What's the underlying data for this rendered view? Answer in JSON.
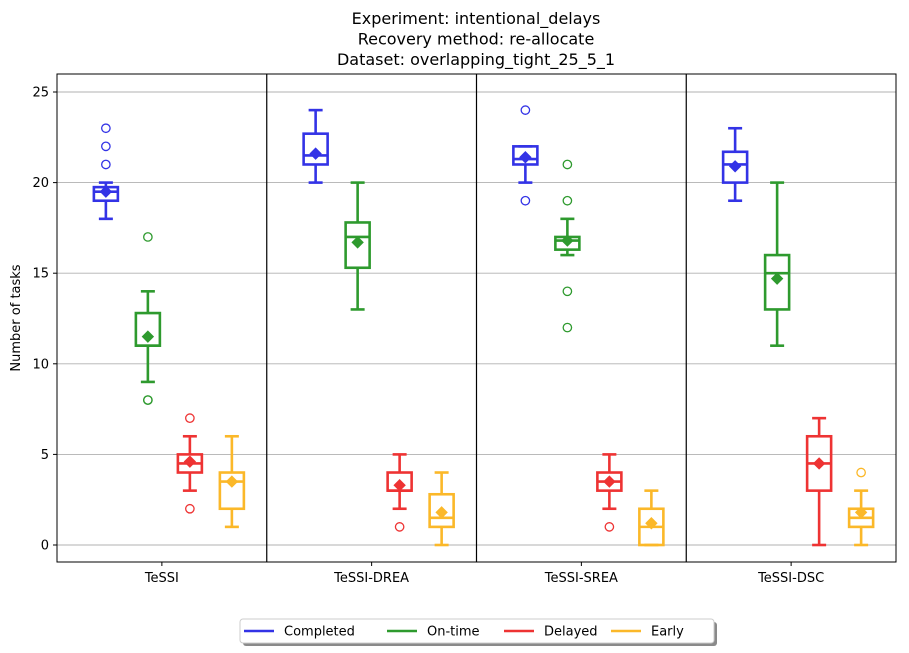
{
  "chart_data": {
    "type": "box",
    "title": [
      "Experiment: intentional_delays",
      "Recovery method: re-allocate",
      "Dataset: overlapping_tight_25_5_1"
    ],
    "xlabel": "",
    "ylabel": "Number of tasks",
    "ylim": [
      -1,
      26
    ],
    "yticks": [
      0,
      5,
      10,
      15,
      20,
      25
    ],
    "grid": "horizontal",
    "legend_placement": "bottom-center",
    "groups": [
      "TeSSI",
      "TeSSI-DREA",
      "TeSSI-SREA",
      "TeSSI-DSC"
    ],
    "series": [
      {
        "name": "Completed",
        "color": "#3333e6",
        "boxes": [
          {
            "whislo": 18,
            "q1": 19,
            "med": 19.5,
            "q3": 19.75,
            "whishi": 20,
            "mean": 19.5,
            "fliers": [
              21,
              22,
              23
            ]
          },
          {
            "whislo": 20,
            "q1": 21,
            "med": 21.5,
            "q3": 22.7,
            "whishi": 24,
            "mean": 21.6,
            "fliers": []
          },
          {
            "whislo": 20,
            "q1": 21,
            "med": 21.3,
            "q3": 22,
            "whishi": 22,
            "mean": 21.4,
            "fliers": [
              19,
              24
            ]
          },
          {
            "whislo": 19,
            "q1": 20,
            "med": 21,
            "q3": 21.7,
            "whishi": 23,
            "mean": 20.9,
            "fliers": []
          }
        ]
      },
      {
        "name": "On-time",
        "color": "#2e9a2e",
        "boxes": [
          {
            "whislo": 9,
            "q1": 11,
            "med": 11,
            "q3": 12.8,
            "whishi": 14,
            "mean": 11.5,
            "fliers": [
              8,
              8,
              17
            ]
          },
          {
            "whislo": 13,
            "q1": 15.3,
            "med": 17,
            "q3": 17.8,
            "whishi": 20,
            "mean": 16.7,
            "fliers": []
          },
          {
            "whislo": 16,
            "q1": 16.3,
            "med": 16.8,
            "q3": 17,
            "whishi": 18,
            "mean": 16.8,
            "fliers": [
              12,
              14,
              19,
              21
            ]
          },
          {
            "whislo": 11,
            "q1": 13,
            "med": 15,
            "q3": 16,
            "whishi": 20,
            "mean": 14.7,
            "fliers": []
          }
        ]
      },
      {
        "name": "Delayed",
        "color": "#ee3333",
        "boxes": [
          {
            "whislo": 3,
            "q1": 4,
            "med": 4.5,
            "q3": 5,
            "whishi": 6,
            "mean": 4.6,
            "fliers": [
              2,
              7
            ]
          },
          {
            "whislo": 2,
            "q1": 3,
            "med": 3,
            "q3": 4,
            "whishi": 5,
            "mean": 3.3,
            "fliers": [
              1
            ]
          },
          {
            "whislo": 2,
            "q1": 3,
            "med": 3.5,
            "q3": 4,
            "whishi": 5,
            "mean": 3.5,
            "fliers": [
              1
            ]
          },
          {
            "whislo": 0,
            "q1": 3,
            "med": 4.5,
            "q3": 6,
            "whishi": 7,
            "mean": 4.5,
            "fliers": []
          }
        ]
      },
      {
        "name": "Early",
        "color": "#fbb829",
        "boxes": [
          {
            "whislo": 1,
            "q1": 2,
            "med": 3.5,
            "q3": 4,
            "whishi": 6,
            "mean": 3.5,
            "fliers": []
          },
          {
            "whislo": 0,
            "q1": 1,
            "med": 1.5,
            "q3": 2.8,
            "whishi": 4,
            "mean": 1.8,
            "fliers": []
          },
          {
            "whislo": 0,
            "q1": 0,
            "med": 1,
            "q3": 2,
            "whishi": 3,
            "mean": 1.2,
            "fliers": []
          },
          {
            "whislo": 0,
            "q1": 1,
            "med": 1.5,
            "q3": 2,
            "whishi": 3,
            "mean": 1.8,
            "fliers": [
              4
            ]
          }
        ]
      }
    ]
  }
}
